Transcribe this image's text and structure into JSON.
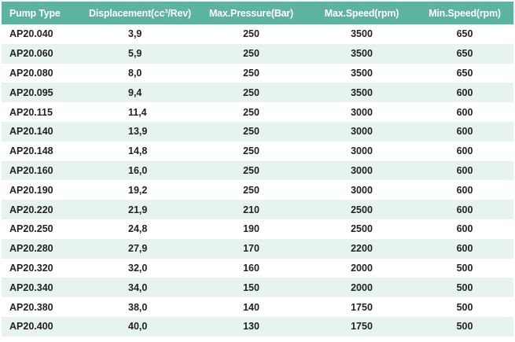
{
  "table": {
    "headers": [
      "Pump Type",
      "Displacement(cc³/Rev)",
      "Max.Pressure(Bar)",
      "Max.Speed(rpm)",
      "Min.Speed(rpm)"
    ],
    "rows": [
      [
        "AP20.040",
        "3,9",
        "250",
        "3500",
        "650"
      ],
      [
        "AP20.060",
        "5,9",
        "250",
        "3500",
        "650"
      ],
      [
        "AP20.080",
        "8,0",
        "250",
        "3500",
        "650"
      ],
      [
        "AP20.095",
        "9,4",
        "250",
        "3500",
        "600"
      ],
      [
        "AP20.115",
        "11,4",
        "250",
        "3000",
        "600"
      ],
      [
        "AP20.140",
        "13,9",
        "250",
        "3000",
        "600"
      ],
      [
        "AP20.148",
        "14,8",
        "250",
        "3000",
        "600"
      ],
      [
        "AP20.160",
        "16,0",
        "250",
        "3000",
        "600"
      ],
      [
        "AP20.190",
        "19,2",
        "250",
        "3000",
        "600"
      ],
      [
        "AP20.220",
        "21,9",
        "210",
        "2500",
        "600"
      ],
      [
        "AP20.250",
        "24,8",
        "190",
        "2500",
        "600"
      ],
      [
        "AP20.280",
        "27,9",
        "170",
        "2200",
        "600"
      ],
      [
        "AP20.320",
        "32,0",
        "160",
        "2000",
        "500"
      ],
      [
        "AP20.340",
        "34,0",
        "150",
        "2000",
        "500"
      ],
      [
        "AP20.380",
        "38,0",
        "140",
        "1750",
        "500"
      ],
      [
        "AP20.400",
        "40,0",
        "130",
        "1750",
        "500"
      ]
    ]
  },
  "colors": {
    "header_bg": "#5bb3a0",
    "header_text": "#ffffff",
    "stripe_bg": "#e6f3f0",
    "cell_text": "#222222"
  }
}
